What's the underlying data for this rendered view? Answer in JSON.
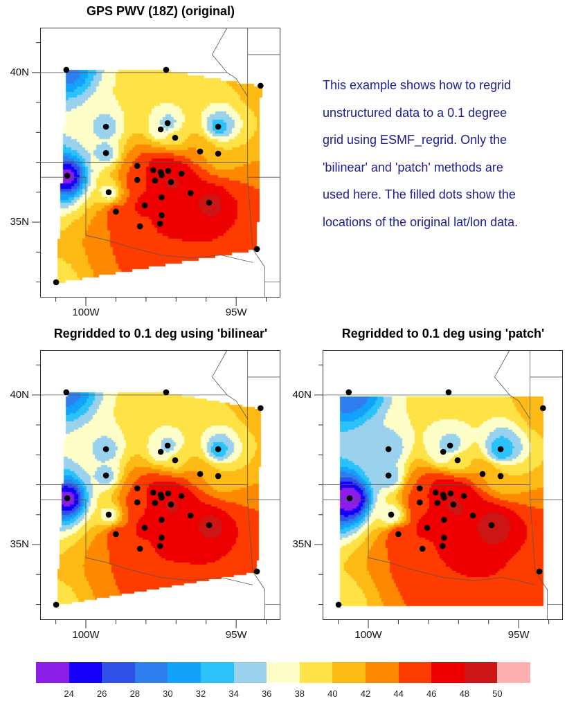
{
  "titles": {
    "original": "GPS PWV (18Z) (original)",
    "bilinear": "Regridded to 0.1 deg using 'bilinear'",
    "patch": "Regridded to 0.1 deg using 'patch'"
  },
  "description": [
    "This example shows how to regrid",
    "unstructured data to a 0.1 degree",
    "grid using ESMF_regrid. Only the",
    "'bilinear' and 'patch' methods are",
    "used here. The filled dots show the",
    "locations of the original lat/lon data."
  ],
  "axis_labels": {
    "lon": [
      "100W",
      "95W"
    ],
    "lat": [
      "40N",
      "35N"
    ]
  },
  "chart_data": {
    "type": "heatmap",
    "variable": "GPS PWV",
    "levels": [
      24,
      26,
      28,
      30,
      32,
      34,
      36,
      38,
      40,
      42,
      44,
      46,
      48,
      50
    ],
    "level_labels": [
      "24",
      "26",
      "28",
      "30",
      "32",
      "34",
      "36",
      "38",
      "40",
      "42",
      "44",
      "46",
      "48",
      "50"
    ],
    "colors": [
      "#8a1ee8",
      "#1400f8",
      "#2e50e6",
      "#2e7ef0",
      "#12a2fa",
      "#2ac2f8",
      "#9ad2ee",
      "#fefec8",
      "#fee246",
      "#fdba14",
      "#fe8800",
      "#fe3c00",
      "#ee0000",
      "#cc1616",
      "#feb0b0"
    ],
    "lon_range": [
      -101.5,
      -93.5
    ],
    "lat_range": [
      32.5,
      41.5
    ],
    "stations": [
      [
        -100.65,
        40.09,
        29
      ],
      [
        -97.33,
        40.09,
        39
      ],
      [
        -94.19,
        39.56,
        41
      ],
      [
        -99.33,
        38.19,
        35
      ],
      [
        -97.28,
        38.31,
        35
      ],
      [
        -97.51,
        38.1,
        36
      ],
      [
        -95.6,
        38.19,
        33
      ],
      [
        -97.03,
        37.82,
        39
      ],
      [
        -99.33,
        37.31,
        35
      ],
      [
        -96.2,
        37.36,
        42
      ],
      [
        -95.6,
        37.29,
        40
      ],
      [
        -100.62,
        36.55,
        23
      ],
      [
        -98.29,
        36.88,
        44
      ],
      [
        -97.76,
        36.74,
        47
      ],
      [
        -97.51,
        36.67,
        48
      ],
      [
        -97.48,
        36.57,
        48
      ],
      [
        -97.26,
        36.71,
        48
      ],
      [
        -96.82,
        36.62,
        47
      ],
      [
        -98.29,
        36.41,
        45
      ],
      [
        -97.7,
        36.39,
        47
      ],
      [
        -97.17,
        36.34,
        49
      ],
      [
        -99.24,
        36.0,
        37
      ],
      [
        -96.52,
        35.97,
        48
      ],
      [
        -97.48,
        35.83,
        47
      ],
      [
        -98.04,
        35.56,
        47
      ],
      [
        -95.9,
        35.65,
        49
      ],
      [
        -99.0,
        35.35,
        45
      ],
      [
        -97.48,
        35.23,
        47
      ],
      [
        -97.53,
        34.95,
        46
      ],
      [
        -98.2,
        34.86,
        45
      ],
      [
        -94.31,
        34.1,
        45
      ],
      [
        -100.99,
        32.99,
        39
      ]
    ]
  }
}
